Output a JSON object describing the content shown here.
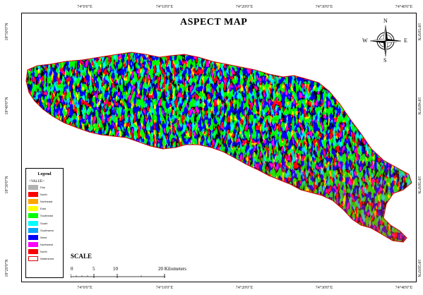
{
  "title": "ASPECT MAP",
  "axes": {
    "longitude_labels": [
      "74°0'0\"E",
      "74°10'0\"E",
      "74°20'0\"E",
      "74°30'0\"E",
      "74°40'0\"E"
    ],
    "latitude_labels": [
      "18°50'0\"N",
      "18°40'0\"N",
      "18°30'0\"N",
      "18°20'0\"N"
    ]
  },
  "north_arrow": {
    "n": "N",
    "s": "S",
    "e": "E",
    "w": "W"
  },
  "legend": {
    "title": "Legend",
    "subtitle": "<VALUE>",
    "items": [
      {
        "label": "Flat",
        "color": "#b2b2b2"
      },
      {
        "label": "North",
        "color": "#ff0000"
      },
      {
        "label": "Northeast",
        "color": "#ffa500"
      },
      {
        "label": "East",
        "color": "#ffff00"
      },
      {
        "label": "Southeast",
        "color": "#00ff00"
      },
      {
        "label": "South",
        "color": "#00ffff"
      },
      {
        "label": "Southwest",
        "color": "#00a6ff"
      },
      {
        "label": "West",
        "color": "#0000ff"
      },
      {
        "label": "Northwest",
        "color": "#ff00ff"
      },
      {
        "label": "North",
        "color": "#ff0000"
      },
      {
        "label": "Watershed",
        "color": "#ffffff",
        "outline": "#e00000"
      }
    ]
  },
  "scale": {
    "title": "SCALE",
    "labels": [
      "0",
      "5",
      "10",
      "20 Kilometers"
    ]
  }
}
